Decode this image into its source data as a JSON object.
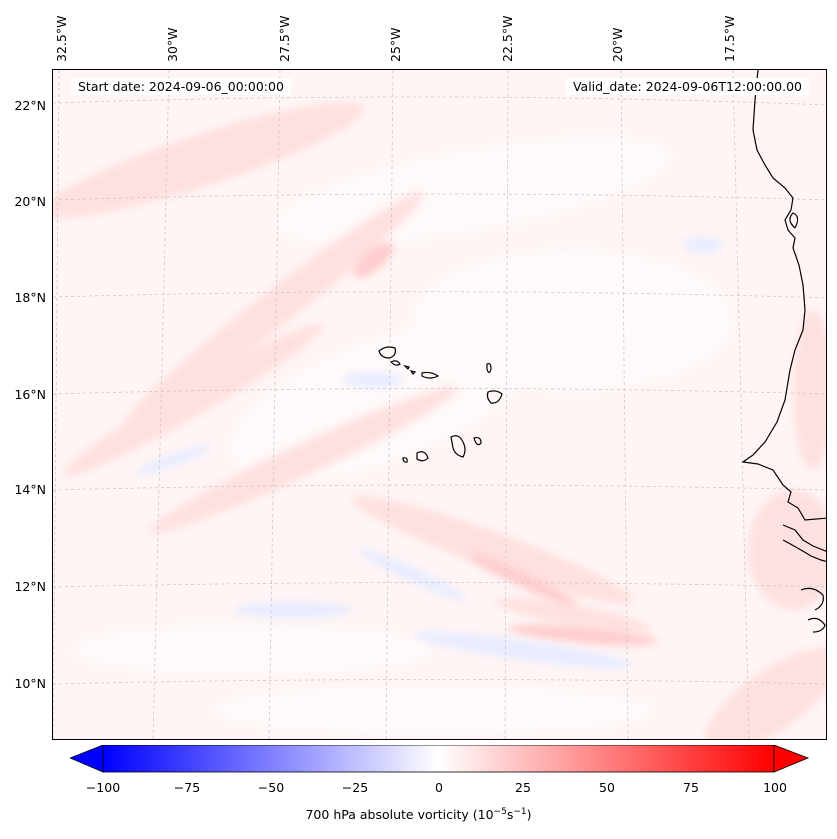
{
  "map": {
    "start_date": "Start date: 2024-09-06_00:00:00",
    "valid_date": "Valid_date: 2024-09-06T12:00:00.00",
    "lon_labels": [
      "32.5°W",
      "30°W",
      "27.5°W",
      "25°W",
      "22.5°W",
      "20°W",
      "17.5°W"
    ],
    "lat_labels": [
      "22°N",
      "20°N",
      "18°N",
      "16°N",
      "14°N",
      "12°N",
      "10°N"
    ],
    "colorbar_label": "700 hPa absolute vorticity (10",
    "colorbar_label_exp": "−5",
    "colorbar_label_unit": "s",
    "colorbar_label_exp2": "−1",
    "colorbar_label_close": ")",
    "colorbar_ticks": [
      "−100",
      "−75",
      "−50",
      "−25",
      "0",
      "25",
      "50",
      "75",
      "100"
    ],
    "colorbar_range": [
      -100,
      100
    ],
    "colors": {
      "negative": "#0000ff",
      "zero": "#ffffff",
      "positive": "#ff0000",
      "coast": "#000000",
      "grid": "#c8c8c8"
    }
  }
}
